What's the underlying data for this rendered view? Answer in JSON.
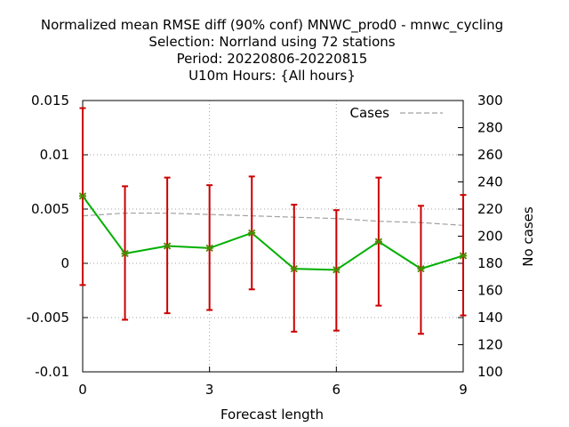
{
  "chart_data": {
    "type": "line",
    "title_lines": [
      "Normalized mean RMSE diff (90% conf) MNWC_prod0 - mnwc_cycling",
      "Selection: Norrland using    72 stations",
      "Period: 20220806-20220815",
      "U10m   Hours: {All hours}"
    ],
    "xlabel": "Forecast length",
    "ylabel": "",
    "y2label": "No cases",
    "xlim": [
      0,
      9
    ],
    "ylim": [
      -0.01,
      0.015
    ],
    "y2lim": [
      100,
      300
    ],
    "x_ticks": [
      0,
      3,
      6,
      9
    ],
    "y_ticks": [
      "-0.01",
      "-0.005",
      "0",
      "0.005",
      "0.01",
      "0.015"
    ],
    "y2_ticks": [
      "100",
      "120",
      "140",
      "160",
      "180",
      "200",
      "220",
      "240",
      "260",
      "280",
      "300"
    ],
    "grid": true,
    "legend": {
      "position": "top-right",
      "entries": [
        "Cases"
      ]
    },
    "series": [
      {
        "kind": "diff",
        "color": "#00b000",
        "marker_color": "#4a8a00",
        "x": [
          0,
          1,
          2,
          3,
          4,
          5,
          6,
          7,
          8,
          9
        ],
        "values": [
          0.0062,
          0.0009,
          0.0016,
          0.0014,
          0.0028,
          -0.0005,
          -0.0006,
          0.002,
          -0.0005,
          0.0007
        ],
        "err_low": [
          -0.002,
          -0.0052,
          -0.0046,
          -0.0043,
          -0.0024,
          -0.0063,
          -0.0062,
          -0.0039,
          -0.0065,
          -0.0048
        ],
        "err_high": [
          0.0143,
          0.0071,
          0.0079,
          0.0072,
          0.008,
          0.0054,
          0.0049,
          0.0079,
          0.0053,
          0.0063
        ],
        "err_color": "#cc0000"
      },
      {
        "kind": "cases",
        "name": "Cases",
        "axis": "y2",
        "color": "#a0a0a0",
        "x": [
          0,
          1,
          2,
          3,
          4,
          5,
          6,
          7,
          8,
          9
        ],
        "values": [
          215,
          217,
          217,
          216,
          215,
          214,
          213,
          211,
          210,
          208
        ]
      }
    ]
  }
}
